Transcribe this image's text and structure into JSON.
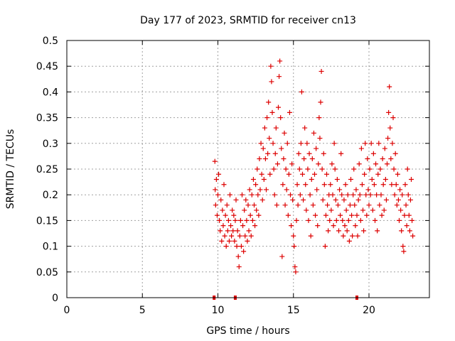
{
  "chart_data": {
    "type": "scatter",
    "title": "Day 177 of 2023, SRMTID for receiver cn13",
    "xlabel": "GPS time / hours",
    "ylabel": "SRMTID / TECUs",
    "xlim": [
      0,
      24
    ],
    "ylim": [
      0,
      0.5
    ],
    "x_ticks": [
      0,
      5,
      10,
      15,
      20
    ],
    "x_tick_labels": [
      "0",
      "5",
      "10",
      "15",
      "20"
    ],
    "y_ticks": [
      0,
      0.05,
      0.1,
      0.15,
      0.2,
      0.25,
      0.3,
      0.35,
      0.4,
      0.45,
      0.5
    ],
    "y_tick_labels": [
      "0",
      "0.05",
      "0.1",
      "0.15",
      "0.2",
      "0.25",
      "0.3",
      "0.35",
      "0.4",
      "0.45",
      "0.5"
    ],
    "grid": true,
    "marker": "+",
    "color": "#dd0000",
    "gap_markers_x": [
      9.75,
      11.15,
      19.2
    ],
    "series": [
      {
        "name": "SRMTID",
        "points": [
          [
            9.8,
            0.265
          ],
          [
            9.82,
            0.21
          ],
          [
            9.85,
            0.18
          ],
          [
            9.9,
            0.23
          ],
          [
            9.95,
            0.16
          ],
          [
            10.0,
            0.2
          ],
          [
            10.05,
            0.24
          ],
          [
            10.1,
            0.15
          ],
          [
            10.15,
            0.13
          ],
          [
            10.2,
            0.19
          ],
          [
            10.25,
            0.11
          ],
          [
            10.3,
            0.17
          ],
          [
            10.35,
            0.14
          ],
          [
            10.4,
            0.22
          ],
          [
            10.45,
            0.12
          ],
          [
            10.5,
            0.16
          ],
          [
            10.55,
            0.1
          ],
          [
            10.6,
            0.18
          ],
          [
            10.65,
            0.13
          ],
          [
            10.7,
            0.15
          ],
          [
            10.75,
            0.11
          ],
          [
            10.8,
            0.2
          ],
          [
            10.85,
            0.14
          ],
          [
            10.9,
            0.12
          ],
          [
            10.95,
            0.17
          ],
          [
            11.0,
            0.13
          ],
          [
            11.05,
            0.16
          ],
          [
            11.1,
            0.11
          ],
          [
            11.15,
            0.15
          ],
          [
            11.2,
            0.19
          ],
          [
            11.25,
            0.1
          ],
          [
            11.3,
            0.13
          ],
          [
            11.35,
            0.08
          ],
          [
            11.4,
            0.06
          ],
          [
            11.45,
            0.12
          ],
          [
            11.5,
            0.15
          ],
          [
            11.55,
            0.1
          ],
          [
            11.6,
            0.2
          ],
          [
            11.65,
            0.14
          ],
          [
            11.7,
            0.09
          ],
          [
            11.75,
            0.17
          ],
          [
            11.8,
            0.12
          ],
          [
            11.85,
            0.19
          ],
          [
            11.9,
            0.15
          ],
          [
            11.95,
            0.11
          ],
          [
            12.0,
            0.18
          ],
          [
            12.05,
            0.13
          ],
          [
            12.1,
            0.21
          ],
          [
            12.15,
            0.16
          ],
          [
            12.2,
            0.12
          ],
          [
            12.25,
            0.2
          ],
          [
            12.3,
            0.15
          ],
          [
            12.35,
            0.23
          ],
          [
            12.4,
            0.18
          ],
          [
            12.45,
            0.14
          ],
          [
            12.5,
            0.22
          ],
          [
            12.55,
            0.17
          ],
          [
            12.6,
            0.25
          ],
          [
            12.65,
            0.2
          ],
          [
            12.7,
            0.16
          ],
          [
            12.75,
            0.27
          ],
          [
            12.8,
            0.21
          ],
          [
            12.85,
            0.3
          ],
          [
            12.9,
            0.24
          ],
          [
            12.95,
            0.19
          ],
          [
            13.0,
            0.29
          ],
          [
            13.05,
            0.23
          ],
          [
            13.1,
            0.33
          ],
          [
            13.15,
            0.27
          ],
          [
            13.2,
            0.21
          ],
          [
            13.25,
            0.35
          ],
          [
            13.3,
            0.28
          ],
          [
            13.35,
            0.38
          ],
          [
            13.4,
            0.31
          ],
          [
            13.45,
            0.24
          ],
          [
            13.5,
            0.45
          ],
          [
            13.55,
            0.42
          ],
          [
            13.6,
            0.36
          ],
          [
            13.65,
            0.3
          ],
          [
            13.7,
            0.25
          ],
          [
            13.75,
            0.2
          ],
          [
            13.8,
            0.28
          ],
          [
            13.85,
            0.33
          ],
          [
            13.9,
            0.18
          ],
          [
            13.95,
            0.26
          ],
          [
            14.0,
            0.37
          ],
          [
            14.05,
            0.43
          ],
          [
            14.1,
            0.46
          ],
          [
            14.15,
            0.35
          ],
          [
            14.2,
            0.29
          ],
          [
            14.25,
            0.08
          ],
          [
            14.3,
            0.22
          ],
          [
            14.35,
            0.27
          ],
          [
            14.4,
            0.32
          ],
          [
            14.45,
            0.18
          ],
          [
            14.5,
            0.25
          ],
          [
            14.55,
            0.21
          ],
          [
            14.6,
            0.3
          ],
          [
            14.65,
            0.16
          ],
          [
            14.7,
            0.24
          ],
          [
            14.75,
            0.36
          ],
          [
            14.8,
            0.2
          ],
          [
            14.85,
            0.14
          ],
          [
            14.9,
            0.26
          ],
          [
            14.95,
            0.19
          ],
          [
            15.0,
            0.12
          ],
          [
            15.05,
            0.1
          ],
          [
            15.1,
            0.06
          ],
          [
            15.15,
            0.05
          ],
          [
            15.2,
            0.15
          ],
          [
            15.25,
            0.22
          ],
          [
            15.3,
            0.18
          ],
          [
            15.35,
            0.28
          ],
          [
            15.4,
            0.25
          ],
          [
            15.45,
            0.2
          ],
          [
            15.5,
            0.3
          ],
          [
            15.55,
            0.4
          ],
          [
            15.6,
            0.24
          ],
          [
            15.65,
            0.19
          ],
          [
            15.7,
            0.27
          ],
          [
            15.75,
            0.33
          ],
          [
            15.8,
            0.22
          ],
          [
            15.85,
            0.17
          ],
          [
            15.9,
            0.3
          ],
          [
            15.95,
            0.25
          ],
          [
            16.0,
            0.15
          ],
          [
            16.05,
            0.28
          ],
          [
            16.1,
            0.2
          ],
          [
            16.15,
            0.12
          ],
          [
            16.2,
            0.23
          ],
          [
            16.25,
            0.27
          ],
          [
            16.3,
            0.18
          ],
          [
            16.35,
            0.32
          ],
          [
            16.4,
            0.24
          ],
          [
            16.45,
            0.16
          ],
          [
            16.5,
            0.29
          ],
          [
            16.55,
            0.21
          ],
          [
            16.6,
            0.14
          ],
          [
            16.65,
            0.26
          ],
          [
            16.7,
            0.35
          ],
          [
            16.75,
            0.31
          ],
          [
            16.8,
            0.38
          ],
          [
            16.85,
            0.44
          ],
          [
            16.9,
            0.25
          ],
          [
            16.95,
            0.19
          ],
          [
            17.0,
            0.28
          ],
          [
            17.05,
            0.22
          ],
          [
            17.1,
            0.1
          ],
          [
            17.15,
            0.16
          ],
          [
            17.2,
            0.24
          ],
          [
            17.25,
            0.18
          ],
          [
            17.3,
            0.13
          ],
          [
            17.35,
            0.2
          ],
          [
            17.4,
            0.15
          ],
          [
            17.45,
            0.22
          ],
          [
            17.5,
            0.17
          ],
          [
            17.55,
            0.26
          ],
          [
            17.6,
            0.2
          ],
          [
            17.65,
            0.14
          ],
          [
            17.7,
            0.3
          ],
          [
            17.75,
            0.25
          ],
          [
            17.8,
            0.19
          ],
          [
            17.85,
            0.15
          ],
          [
            17.9,
            0.23
          ],
          [
            17.95,
            0.18
          ],
          [
            18.0,
            0.13
          ],
          [
            18.05,
            0.21
          ],
          [
            18.1,
            0.16
          ],
          [
            18.15,
            0.28
          ],
          [
            18.2,
            0.2
          ],
          [
            18.25,
            0.15
          ],
          [
            18.3,
            0.12
          ],
          [
            18.35,
            0.19
          ],
          [
            18.4,
            0.14
          ],
          [
            18.45,
            0.22
          ],
          [
            18.5,
            0.17
          ],
          [
            18.55,
            0.13
          ],
          [
            18.6,
            0.2
          ],
          [
            18.65,
            0.15
          ],
          [
            18.7,
            0.11
          ],
          [
            18.75,
            0.18
          ],
          [
            18.8,
            0.23
          ],
          [
            18.85,
            0.16
          ],
          [
            18.9,
            0.12
          ],
          [
            18.95,
            0.2
          ],
          [
            19.0,
            0.25
          ],
          [
            19.05,
            0.18
          ],
          [
            19.1,
            0.14
          ],
          [
            19.15,
            0.21
          ],
          [
            19.2,
            0.16
          ],
          [
            19.25,
            0.12
          ],
          [
            19.3,
            0.19
          ],
          [
            19.35,
            0.26
          ],
          [
            19.4,
            0.2
          ],
          [
            19.45,
            0.15
          ],
          [
            19.5,
            0.29
          ],
          [
            19.55,
            0.22
          ],
          [
            19.6,
            0.17
          ],
          [
            19.65,
            0.13
          ],
          [
            19.7,
            0.24
          ],
          [
            19.75,
            0.3
          ],
          [
            19.8,
            0.2
          ],
          [
            19.85,
            0.16
          ],
          [
            19.9,
            0.27
          ],
          [
            19.95,
            0.21
          ],
          [
            20.0,
            0.18
          ],
          [
            20.05,
            0.25
          ],
          [
            20.1,
            0.2
          ],
          [
            20.15,
            0.3
          ],
          [
            20.2,
            0.23
          ],
          [
            20.25,
            0.17
          ],
          [
            20.3,
            0.28
          ],
          [
            20.35,
            0.22
          ],
          [
            20.4,
            0.15
          ],
          [
            20.45,
            0.26
          ],
          [
            20.5,
            0.2
          ],
          [
            20.55,
            0.13
          ],
          [
            20.6,
            0.24
          ],
          [
            20.65,
            0.3
          ],
          [
            20.7,
            0.18
          ],
          [
            20.75,
            0.25
          ],
          [
            20.8,
            0.2
          ],
          [
            20.85,
            0.16
          ],
          [
            20.9,
            0.27
          ],
          [
            20.95,
            0.22
          ],
          [
            21.0,
            0.17
          ],
          [
            21.05,
            0.29
          ],
          [
            21.1,
            0.23
          ],
          [
            21.15,
            0.19
          ],
          [
            21.2,
            0.26
          ],
          [
            21.25,
            0.31
          ],
          [
            21.3,
            0.36
          ],
          [
            21.35,
            0.41
          ],
          [
            21.4,
            0.33
          ],
          [
            21.45,
            0.27
          ],
          [
            21.5,
            0.22
          ],
          [
            21.55,
            0.3
          ],
          [
            21.6,
            0.35
          ],
          [
            21.65,
            0.25
          ],
          [
            21.7,
            0.2
          ],
          [
            21.75,
            0.28
          ],
          [
            21.8,
            0.22
          ],
          [
            21.85,
            0.18
          ],
          [
            21.9,
            0.24
          ],
          [
            21.95,
            0.19
          ],
          [
            22.0,
            0.15
          ],
          [
            22.05,
            0.21
          ],
          [
            22.1,
            0.17
          ],
          [
            22.15,
            0.13
          ],
          [
            22.2,
            0.2
          ],
          [
            22.25,
            0.1
          ],
          [
            22.3,
            0.09
          ],
          [
            22.35,
            0.16
          ],
          [
            22.4,
            0.22
          ],
          [
            22.45,
            0.18
          ],
          [
            22.5,
            0.14
          ],
          [
            22.55,
            0.25
          ],
          [
            22.6,
            0.2
          ],
          [
            22.65,
            0.16
          ],
          [
            22.7,
            0.13
          ],
          [
            22.75,
            0.19
          ],
          [
            22.8,
            0.23
          ],
          [
            22.85,
            0.15
          ],
          [
            22.9,
            0.12
          ]
        ]
      }
    ]
  }
}
